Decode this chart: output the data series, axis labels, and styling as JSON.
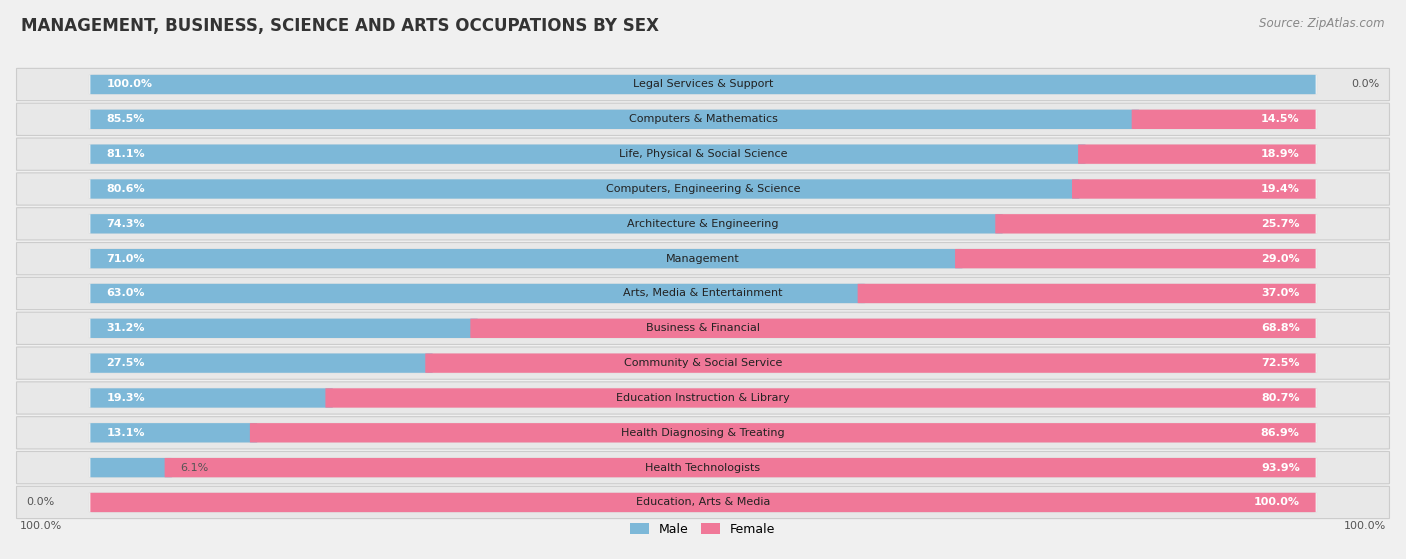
{
  "title": "MANAGEMENT, BUSINESS, SCIENCE AND ARTS OCCUPATIONS BY SEX",
  "source": "Source: ZipAtlas.com",
  "categories": [
    "Legal Services & Support",
    "Computers & Mathematics",
    "Life, Physical & Social Science",
    "Computers, Engineering & Science",
    "Architecture & Engineering",
    "Management",
    "Arts, Media & Entertainment",
    "Business & Financial",
    "Community & Social Service",
    "Education Instruction & Library",
    "Health Diagnosing & Treating",
    "Health Technologists",
    "Education, Arts & Media"
  ],
  "male": [
    100.0,
    85.5,
    81.1,
    80.6,
    74.3,
    71.0,
    63.0,
    31.2,
    27.5,
    19.3,
    13.1,
    6.1,
    0.0
  ],
  "female": [
    0.0,
    14.5,
    18.9,
    19.4,
    25.7,
    29.0,
    37.0,
    68.8,
    72.5,
    80.7,
    86.9,
    93.9,
    100.0
  ],
  "male_color": "#7db8d8",
  "female_color": "#f07898",
  "bg_color": "#f0f0f0",
  "row_bg_color": "#e8e8e8",
  "bar_bg_color": "#ffffff",
  "title_fontsize": 12,
  "source_fontsize": 8.5,
  "cat_label_fontsize": 8,
  "pct_label_fontsize": 8,
  "bar_inner_label_color": "#ffffff",
  "bar_outer_label_color": "#555555"
}
